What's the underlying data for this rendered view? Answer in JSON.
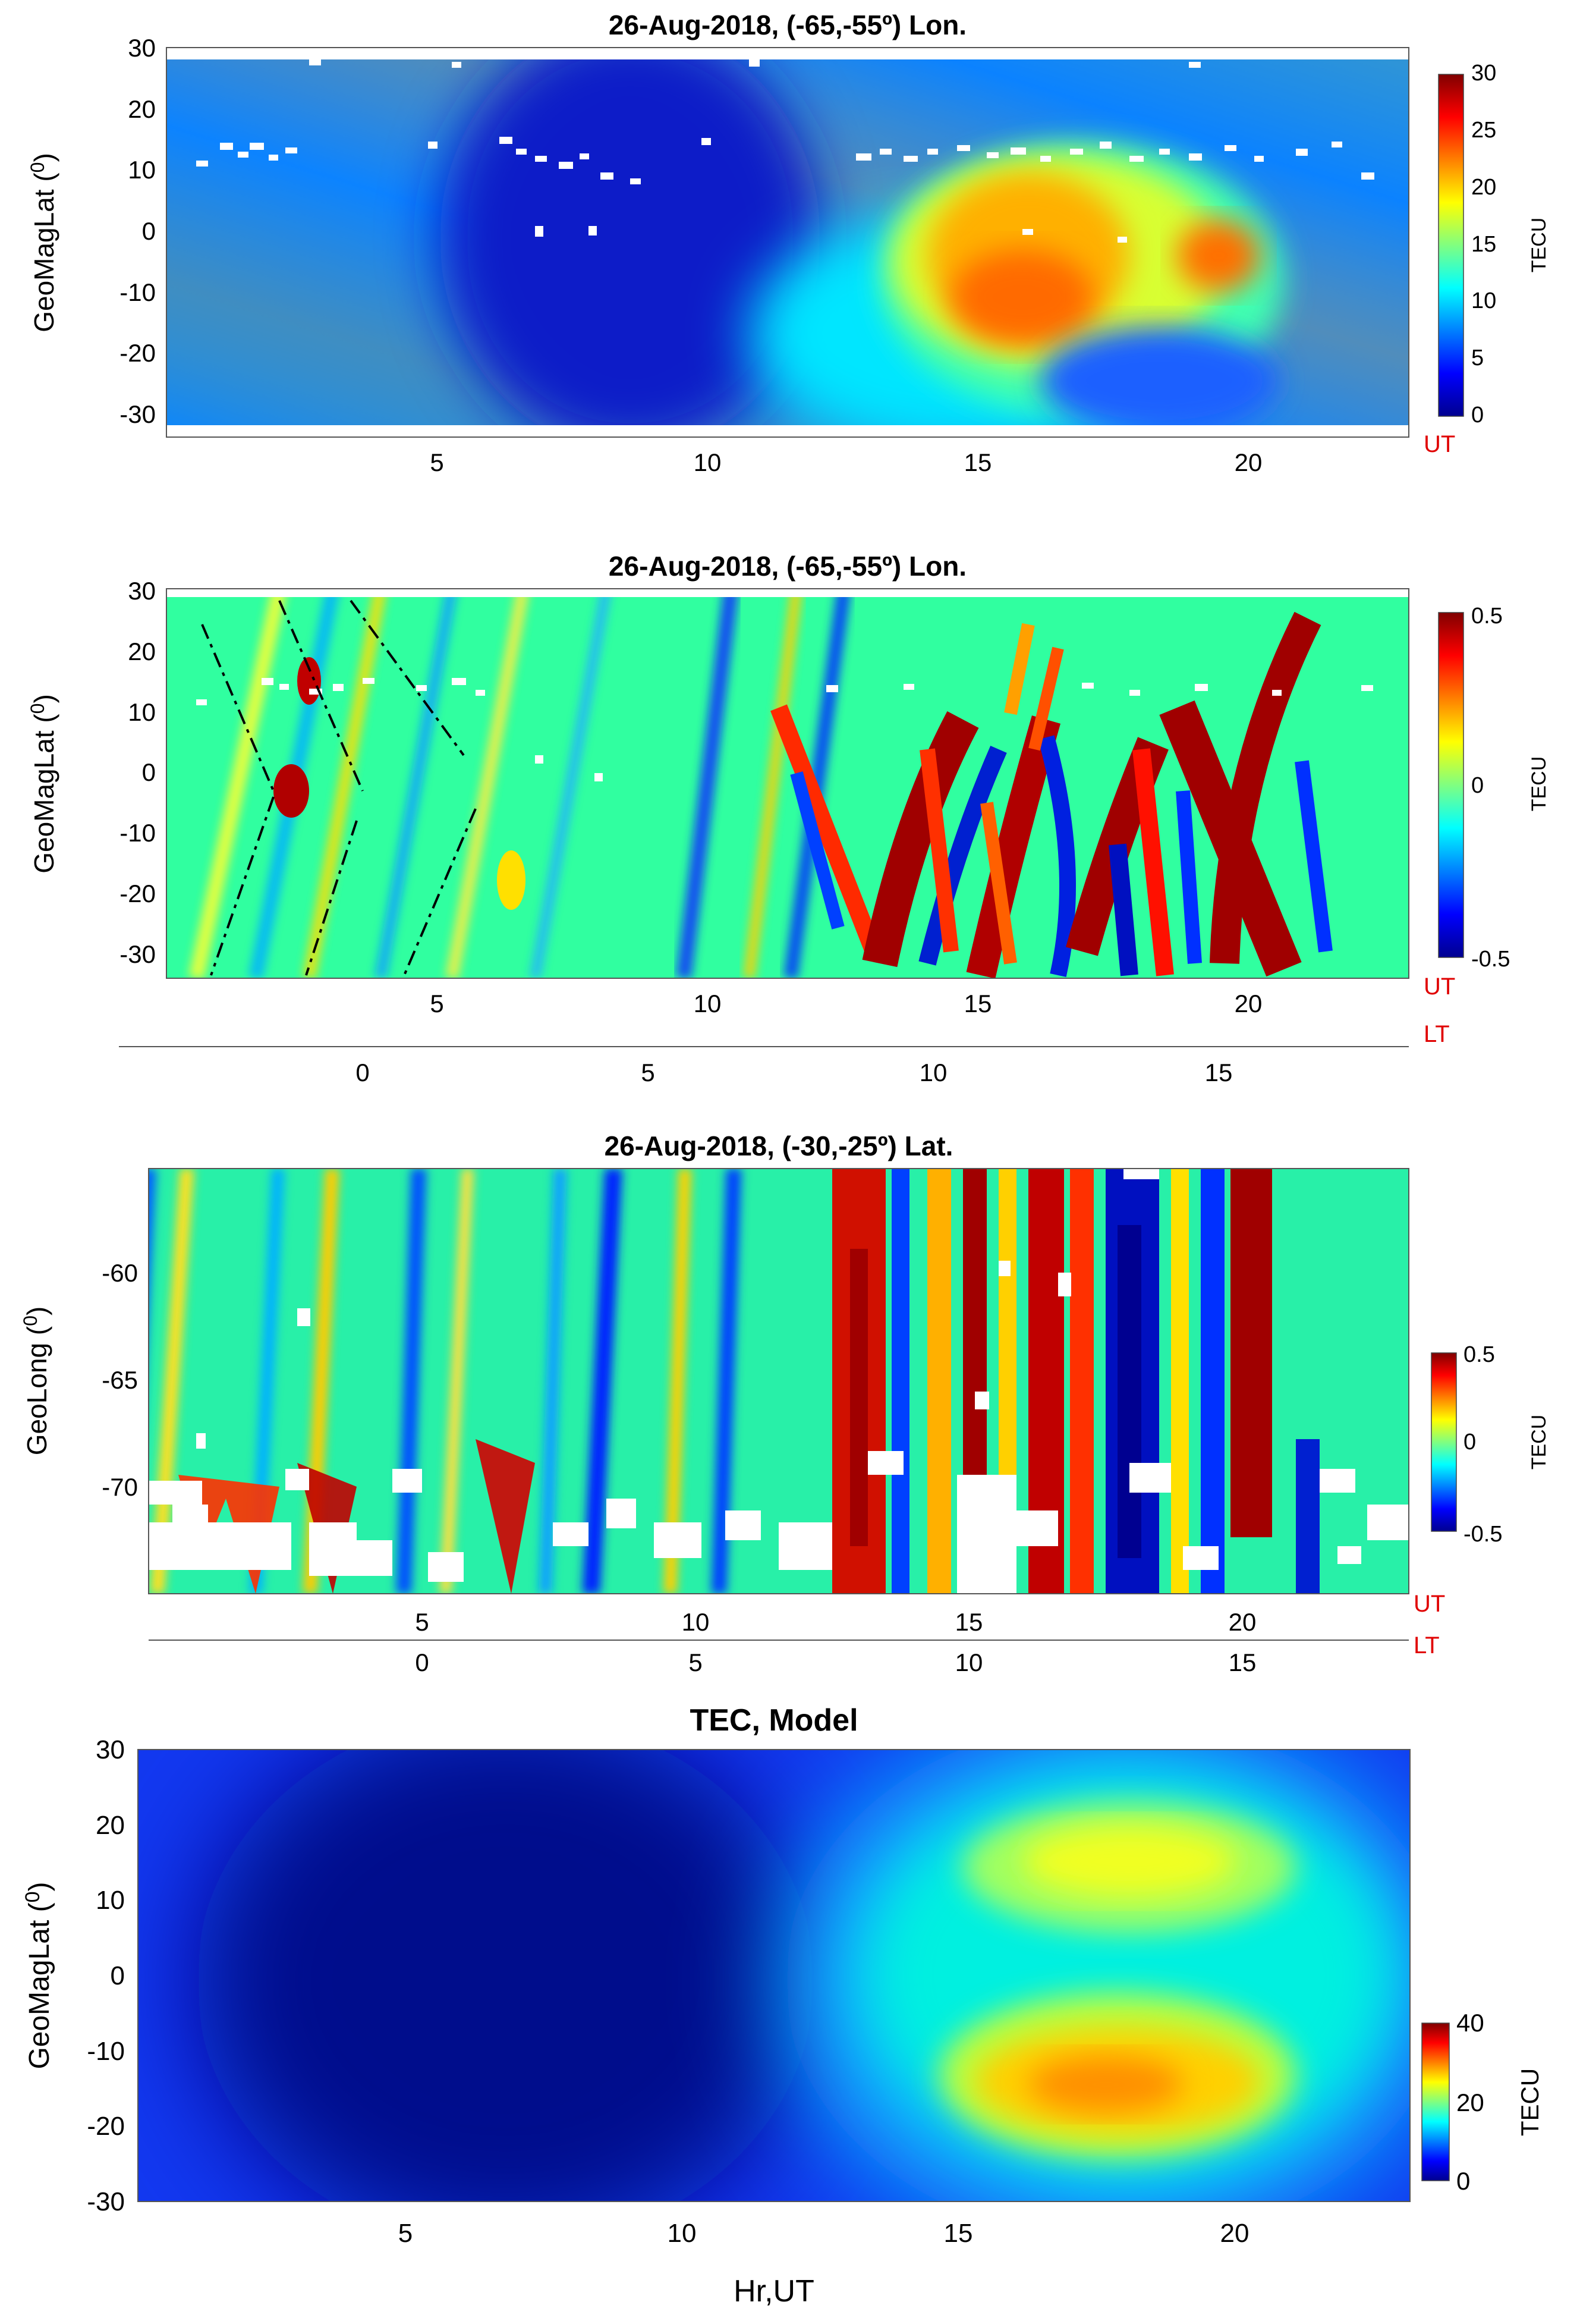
{
  "chart_data": [
    {
      "type": "heatmap",
      "title": "26-Aug-2018, (-65,-55º) Lon.",
      "ylabel": "GeoMagLat (°)",
      "x_axis_label": "UT",
      "x_ticks": [
        5,
        10,
        15,
        20
      ],
      "y_ticks": [
        30,
        20,
        10,
        0,
        -10,
        -20,
        -30
      ],
      "xlim": [
        0,
        23
      ],
      "ylim": [
        -33,
        31
      ],
      "colorbar": {
        "label": "TECU",
        "ticks": [
          30,
          25,
          20,
          15,
          10,
          5,
          0
        ],
        "range": [
          0,
          30
        ]
      },
      "features": {
        "background_level": 5,
        "blob_peak_level": 23,
        "blob_time_range": [
          12,
          22
        ],
        "blob_lat_range": [
          -28,
          8
        ],
        "pre_noon_low": 2,
        "missing_data_band_lat": [
          8,
          16
        ]
      }
    },
    {
      "type": "heatmap",
      "title": "26-Aug-2018, (-65,-55º) Lon.",
      "ylabel": "GeoMagLat (°)",
      "x_axis_label": "UT",
      "secondary_x_axis_label": "LT",
      "x_ticks": [
        5,
        10,
        15,
        20
      ],
      "secondary_x_ticks": [
        0,
        5,
        10,
        15
      ],
      "xlim": [
        0,
        23
      ],
      "ylim": [
        -33,
        31
      ],
      "y_ticks": [
        30,
        20,
        10,
        0,
        -10,
        -20,
        -30
      ],
      "colorbar": {
        "label": "TECU",
        "ticks": [
          0.5,
          0,
          -0.5
        ],
        "range": [
          -0.5,
          0.5
        ]
      },
      "features": {
        "description_of_structure": "Diagonal bands of detrended TEC (traveling ionospheric disturbances)",
        "dashed_guides": 6
      }
    },
    {
      "type": "heatmap",
      "title": "26-Aug-2018, (-30,-25º) Lat.",
      "ylabel": "GeoLong (°)",
      "x_axis_label": "UT",
      "secondary_x_axis_label": "LT",
      "x_ticks": [
        5,
        10,
        15,
        20
      ],
      "secondary_x_ticks": [
        0,
        5,
        10,
        15
      ],
      "xlim": [
        0,
        23
      ],
      "ylim": [
        -75,
        -55
      ],
      "y_ticks": [
        -60,
        -65,
        -70
      ],
      "colorbar": {
        "label": "TECU",
        "ticks": [
          0.5,
          0,
          -0.5
        ],
        "range": [
          -0.5,
          0.5
        ]
      }
    },
    {
      "type": "heatmap",
      "title": "TEC, Model",
      "ylabel": "GeoMagLat (°)",
      "xlabel": "Hr,UT",
      "x_ticks": [
        5,
        10,
        15,
        20
      ],
      "y_ticks": [
        30,
        20,
        10,
        0,
        -10,
        -20,
        -30
      ],
      "xlim": [
        0,
        23
      ],
      "ylim": [
        -30,
        30
      ],
      "colorbar": {
        "label": "TECU",
        "ticks": [
          40,
          20,
          0
        ],
        "range": [
          0,
          40
        ]
      },
      "features": {
        "peak_south": {
          "ut": 18.5,
          "lat": -17,
          "value": 36
        },
        "peak_north": {
          "ut": 19,
          "lat": 13,
          "value": 29
        }
      }
    }
  ],
  "text": {
    "p1_title": "26-Aug-2018, (-65,-55º) Lon.",
    "p2_title": "26-Aug-2018, (-65,-55º) Lon.",
    "p3_title": "26-Aug-2018, (-30,-25º) Lat.",
    "p4_title": "TEC, Model",
    "gml_prefix": "GeoMagLat (",
    "gml_sup": "0",
    "gml_suffix": ")",
    "glong_prefix": "GeoLong (",
    "glong_sup": "0",
    "glong_suffix": ")",
    "tecu": "TECU",
    "ut": "UT",
    "lt": "LT",
    "xlabel4": "Hr,UT"
  },
  "colors": {
    "label_red": "#e00000"
  }
}
